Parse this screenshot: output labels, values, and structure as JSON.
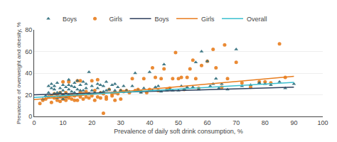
{
  "chart_data": {
    "type": "scatter",
    "x_label": "Prevalence of daily soft drink consumption, %",
    "y_label": "Prevalence of overweight and obesity, %",
    "xlim": [
      0,
      100
    ],
    "ylim": [
      0,
      80
    ],
    "xticks": [
      0,
      10,
      20,
      30,
      40,
      50,
      60,
      70,
      80,
      90,
      100
    ],
    "yticks": [
      0,
      20,
      40,
      60,
      80
    ],
    "grid": "y",
    "legend": "upper left",
    "series": [
      {
        "name": "Boys",
        "type": "scatter",
        "marker": "triangle",
        "color": "#2e6b7a",
        "x": [
          3,
          4,
          5,
          5,
          6,
          6,
          7,
          7,
          7,
          8,
          8,
          8,
          9,
          9,
          9,
          10,
          10,
          10,
          10,
          11,
          11,
          11,
          12,
          12,
          12,
          12,
          13,
          13,
          14,
          14,
          14,
          15,
          15,
          15,
          16,
          16,
          17,
          17,
          18,
          18,
          19,
          19,
          20,
          20,
          21,
          22,
          22,
          23,
          23,
          24,
          24,
          25,
          25,
          26,
          27,
          28,
          28,
          29,
          30,
          31,
          32,
          33,
          34,
          35,
          36,
          37,
          38,
          40,
          41,
          42,
          43,
          44,
          45,
          46,
          47,
          48,
          50,
          51,
          52,
          53,
          55,
          56,
          57,
          58,
          60,
          61,
          62,
          63,
          64,
          65,
          67,
          70,
          72,
          75,
          78,
          80,
          82,
          85,
          87,
          90
        ],
        "values": [
          16,
          19,
          22,
          28,
          26,
          30,
          21,
          25,
          28,
          17,
          22,
          31,
          18,
          22,
          26,
          16,
          20,
          24,
          29,
          18,
          21,
          27,
          20,
          25,
          29,
          34,
          23,
          28,
          22,
          27,
          31,
          20,
          25,
          33,
          24,
          29,
          24,
          32,
          26,
          30,
          21,
          41,
          24,
          28,
          22,
          26,
          30,
          22,
          29,
          23,
          28,
          24,
          32,
          25,
          29,
          24,
          30,
          27,
          24,
          28,
          24,
          23,
          28,
          40,
          24,
          22,
          26,
          41,
          24,
          27,
          28,
          23,
          48,
          24,
          25,
          24,
          24,
          28,
          25,
          27,
          27,
          50,
          25,
          60,
          51,
          28,
          30,
          35,
          26,
          30,
          25,
          62,
          28,
          29,
          31,
          30,
          29,
          32,
          26,
          30
        ]
      },
      {
        "name": "Girls",
        "type": "scatter",
        "marker": "circle",
        "color": "#e87d1e",
        "x": [
          2,
          3,
          4,
          5,
          6,
          6,
          7,
          7,
          8,
          8,
          9,
          9,
          9,
          10,
          10,
          10,
          11,
          11,
          11,
          12,
          12,
          12,
          13,
          13,
          14,
          14,
          15,
          15,
          15,
          16,
          16,
          16,
          17,
          17,
          18,
          18,
          19,
          19,
          20,
          20,
          21,
          21,
          22,
          22,
          23,
          23,
          24,
          24,
          25,
          25,
          26,
          27,
          27,
          28,
          28,
          29,
          30,
          30,
          31,
          32,
          33,
          34,
          35,
          36,
          37,
          38,
          39,
          40,
          41,
          42,
          43,
          44,
          45,
          46,
          47,
          48,
          49,
          50,
          51,
          52,
          53,
          54,
          55,
          56,
          57,
          58,
          60,
          62,
          63,
          65,
          66,
          67,
          70,
          72,
          75,
          78,
          80,
          82,
          85,
          87
        ],
        "values": [
          12,
          15,
          16,
          18,
          13,
          19,
          17,
          21,
          15,
          20,
          14,
          18,
          22,
          16,
          20,
          32,
          15,
          18,
          22,
          17,
          19,
          32,
          16,
          20,
          15,
          19,
          15,
          20,
          33,
          18,
          22,
          33,
          16,
          21,
          18,
          23,
          17,
          21,
          19,
          33,
          15,
          24,
          18,
          34,
          17,
          22,
          21,
          3,
          18,
          16,
          25,
          19,
          21,
          22,
          15,
          21,
          24,
          16,
          23,
          24,
          22,
          35,
          24,
          25,
          23,
          35,
          22,
          25,
          45,
          36,
          24,
          35,
          44,
          25,
          26,
          35,
          59,
          35,
          36,
          25,
          36,
          44,
          52,
          35,
          26,
          47,
          51,
          62,
          45,
          27,
          66,
          35,
          50,
          31,
          27,
          32,
          32,
          31,
          67,
          36
        ]
      },
      {
        "name": "Boys",
        "type": "line",
        "color": "#2e3f5c",
        "x": [
          0,
          90
        ],
        "values": [
          20.0,
          27.0
        ]
      },
      {
        "name": "Girls",
        "type": "line",
        "color": "#e87d1e",
        "x": [
          0,
          90
        ],
        "values": [
          15.5,
          37.0
        ]
      },
      {
        "name": "Overall",
        "type": "line",
        "color": "#3bbfcf",
        "x": [
          0,
          90
        ],
        "values": [
          17.5,
          31.5
        ]
      }
    ]
  }
}
